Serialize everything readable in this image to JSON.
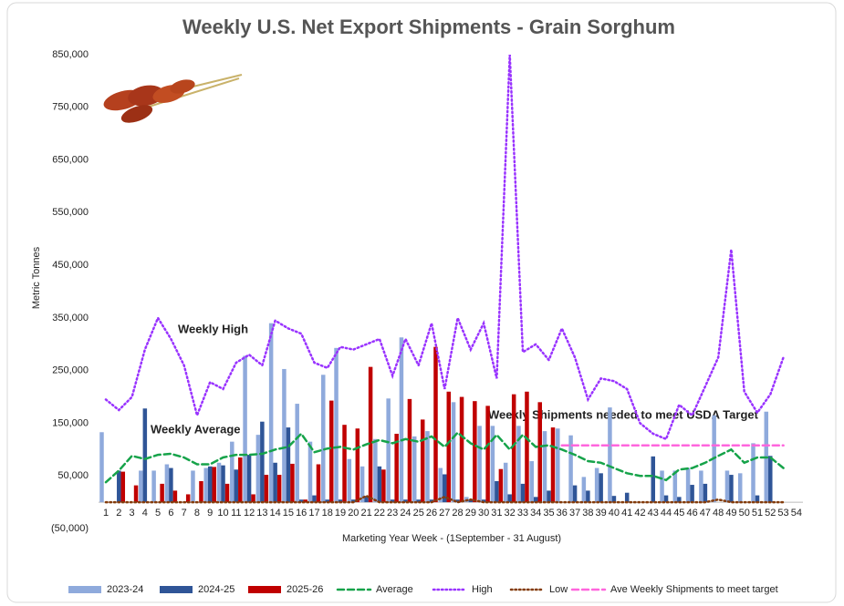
{
  "chart_data": {
    "type": "bar",
    "title": "Weekly U.S. Net Export Shipments - Grain Sorghum",
    "y_label": "Metric Tonnes",
    "x_label": "Marketing Year Week - (1September - 31 August)",
    "negative_tick_color": "#c00000",
    "annotations": [
      {
        "text": "Weekly High",
        "color": "#9933ff"
      },
      {
        "text": "Weekly Average",
        "color": "#16a34a"
      },
      {
        "text": "Weekly Shipments needed to meet USDA Target",
        "color": "#ff33cc"
      }
    ],
    "categories": [
      "1",
      "2",
      "3",
      "4",
      "5",
      "6",
      "7",
      "8",
      "9",
      "10",
      "11",
      "12",
      "13",
      "14",
      "15",
      "16",
      "17",
      "18",
      "19",
      "20",
      "21",
      "22",
      "23",
      "24",
      "25",
      "26",
      "27",
      "28",
      "29",
      "30",
      "31",
      "32",
      "33",
      "34",
      "35",
      "36",
      "37",
      "38",
      "39",
      "40",
      "41",
      "42",
      "43",
      "44",
      "45",
      "46",
      "47",
      "48",
      "49",
      "50",
      "51",
      "52",
      "53",
      "54"
    ],
    "ylim": [
      -50000,
      850000
    ],
    "yticks": [
      {
        "value": -50000,
        "label": "(50,000)"
      },
      {
        "value": 50000,
        "label": "50,000"
      },
      {
        "value": 150000,
        "label": "150,000"
      },
      {
        "value": 250000,
        "label": "250,000"
      },
      {
        "value": 350000,
        "label": "350,000"
      },
      {
        "value": 450000,
        "label": "450,000"
      },
      {
        "value": 550000,
        "label": "550,000"
      },
      {
        "value": 650000,
        "label": "650,000"
      },
      {
        "value": 750000,
        "label": "750,000"
      },
      {
        "value": 850000,
        "label": "850,000"
      }
    ],
    "series": [
      {
        "name": "2023-24",
        "type": "bar",
        "color": "#8faadc",
        "values": [
          133000,
          null,
          null,
          60000,
          60000,
          72000,
          null,
          60000,
          65000,
          75000,
          115000,
          278000,
          128000,
          340000,
          253000,
          187000,
          115000,
          242000,
          293000,
          82000,
          68000,
          120000,
          197000,
          313000,
          125000,
          135000,
          65000,
          190000,
          10000,
          145000,
          145000,
          75000,
          145000,
          78000,
          135000,
          140000,
          127000,
          48000,
          65000,
          180000,
          null,
          null,
          null,
          60000,
          60000,
          65000,
          60000,
          165000,
          60000,
          55000,
          112000,
          172000,
          null,
          null
        ]
      },
      {
        "name": "2024-25",
        "type": "bar",
        "color": "#2f5597",
        "values": [
          null,
          60000,
          null,
          178000,
          null,
          65000,
          null,
          null,
          68000,
          70000,
          62000,
          90000,
          153000,
          75000,
          142000,
          5000,
          13000,
          5000,
          5000,
          5000,
          12000,
          68000,
          5000,
          5000,
          5000,
          5000,
          53000,
          5000,
          5000,
          5000,
          40000,
          15000,
          35000,
          10000,
          22000,
          null,
          32000,
          22000,
          55000,
          12000,
          18000,
          null,
          87000,
          13000,
          10000,
          33000,
          35000,
          null,
          52000,
          null,
          13000,
          88000,
          null,
          null
        ]
      },
      {
        "name": "2025-26",
        "type": "bar",
        "color": "#c00000",
        "values": [
          null,
          58000,
          32000,
          null,
          35000,
          22000,
          15000,
          40000,
          67000,
          35000,
          85000,
          15000,
          52000,
          52000,
          73000,
          5000,
          72000,
          193000,
          147000,
          140000,
          257000,
          62000,
          130000,
          196000,
          157000,
          295000,
          210000,
          200000,
          192000,
          183000,
          63000,
          205000,
          210000,
          190000,
          142000,
          null,
          null,
          null,
          null,
          null,
          null,
          null,
          null,
          null,
          null,
          null,
          null,
          null,
          null,
          null,
          null,
          null,
          null,
          null
        ]
      },
      {
        "name": "Average",
        "type": "line",
        "dash": "dashed",
        "color": "#16a34a",
        "values": [
          38000,
          60000,
          88000,
          82000,
          90000,
          92000,
          85000,
          72000,
          72000,
          85000,
          90000,
          90000,
          92000,
          100000,
          105000,
          130000,
          95000,
          102000,
          105000,
          100000,
          110000,
          118000,
          112000,
          120000,
          115000,
          125000,
          105000,
          132000,
          112000,
          100000,
          128000,
          100000,
          128000,
          105000,
          108000,
          100000,
          90000,
          78000,
          75000,
          65000,
          55000,
          50000,
          50000,
          42000,
          62000,
          65000,
          75000,
          88000,
          100000,
          75000,
          85000,
          85000,
          65000,
          null
        ]
      },
      {
        "name": "High",
        "type": "line",
        "dash": "dotted",
        "color": "#9933ff",
        "values": [
          195000,
          175000,
          200000,
          290000,
          350000,
          310000,
          260000,
          165000,
          228000,
          215000,
          265000,
          280000,
          260000,
          345000,
          330000,
          320000,
          265000,
          255000,
          295000,
          290000,
          300000,
          310000,
          240000,
          310000,
          260000,
          340000,
          215000,
          350000,
          290000,
          340000,
          235000,
          850000,
          285000,
          300000,
          270000,
          330000,
          275000,
          195000,
          235000,
          230000,
          215000,
          150000,
          130000,
          120000,
          185000,
          165000,
          220000,
          275000,
          480000,
          210000,
          170000,
          205000,
          275000,
          null
        ]
      },
      {
        "name": "Low",
        "type": "line",
        "dash": "dotted",
        "color": "#843c0c",
        "values": [
          0,
          0,
          0,
          0,
          0,
          0,
          0,
          0,
          0,
          0,
          0,
          0,
          0,
          0,
          0,
          0,
          0,
          0,
          0,
          0,
          12000,
          0,
          0,
          0,
          0,
          0,
          10000,
          0,
          5000,
          0,
          0,
          0,
          0,
          0,
          0,
          0,
          0,
          0,
          0,
          0,
          0,
          0,
          0,
          0,
          0,
          0,
          0,
          5000,
          0,
          0,
          0,
          0,
          0,
          null
        ]
      },
      {
        "name": "Ave Weekly Shipments to meet target",
        "type": "line",
        "dash": "dashed",
        "color": "#ff66dd",
        "values": [
          null,
          null,
          null,
          null,
          null,
          null,
          null,
          null,
          null,
          null,
          null,
          null,
          null,
          null,
          null,
          null,
          null,
          null,
          null,
          null,
          null,
          null,
          null,
          null,
          null,
          null,
          null,
          null,
          null,
          null,
          null,
          null,
          null,
          null,
          null,
          108000,
          108000,
          108000,
          108000,
          108000,
          108000,
          108000,
          108000,
          108000,
          108000,
          108000,
          108000,
          108000,
          108000,
          108000,
          108000,
          108000,
          108000,
          null
        ]
      }
    ]
  }
}
